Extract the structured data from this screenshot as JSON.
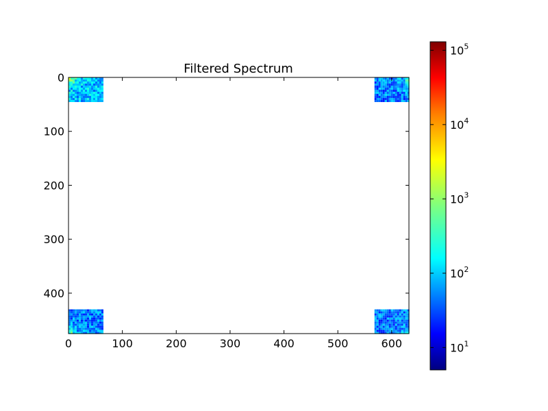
{
  "chart_data": {
    "type": "heatmap",
    "title": "Filtered Spectrum",
    "xlabel": "",
    "ylabel": "",
    "x_ticks": [
      0,
      100,
      200,
      300,
      400,
      500,
      600
    ],
    "y_ticks": [
      0,
      100,
      200,
      300,
      400
    ],
    "xlim": [
      0,
      632
    ],
    "ylim": [
      475,
      0
    ],
    "y_inverted": true,
    "grid": false,
    "colormap": "jet",
    "color_scale": "log",
    "colorbar": {
      "ticks": [
        {
          "value": 10,
          "base": "10",
          "exp": "1"
        },
        {
          "value": 100,
          "base": "10",
          "exp": "2"
        },
        {
          "value": 1000,
          "base": "10",
          "exp": "3"
        },
        {
          "value": 10000,
          "base": "10",
          "exp": "4"
        },
        {
          "value": 100000,
          "base": "10",
          "exp": "5"
        }
      ],
      "range": [
        5,
        130000
      ]
    },
    "regions": [
      {
        "name": "top-left",
        "x_range": [
          0,
          63
        ],
        "y_range": [
          0,
          45
        ],
        "typical_value": 120,
        "corner_peak": 1500
      },
      {
        "name": "top-right",
        "x_range": [
          568,
          632
        ],
        "y_range": [
          0,
          45
        ],
        "typical_value": 60,
        "corner_peak": 1500
      },
      {
        "name": "bottom-left",
        "x_range": [
          0,
          63
        ],
        "y_range": [
          430,
          475
        ],
        "typical_value": 60,
        "corner_peak": 1500
      },
      {
        "name": "bottom-right",
        "x_range": [
          568,
          632
        ],
        "y_range": [
          430,
          475
        ],
        "typical_value": 60,
        "corner_peak": 1500
      }
    ],
    "background": "masked (white)",
    "colors": {
      "jet": [
        "#00007f",
        "#0000ff",
        "#007fff",
        "#00ffff",
        "#7fff7f",
        "#ffff00",
        "#ff7f00",
        "#ff0000",
        "#7f0000"
      ],
      "background": "#ffffff",
      "axes": "#000000"
    }
  }
}
